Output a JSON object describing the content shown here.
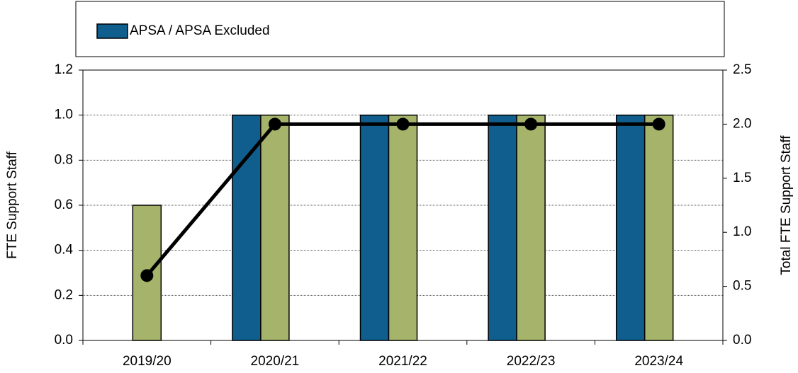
{
  "chart_data": {
    "type": "bar",
    "categories": [
      "2019/20",
      "2020/21",
      "2021/22",
      "2022/23",
      "2023/24"
    ],
    "series": [
      {
        "name": "APSA / APSA Excluded",
        "color": "#0f5e8e",
        "values": [
          0,
          1.0,
          1.0,
          1.0,
          1.0
        ]
      },
      {
        "color": "#a5b46a",
        "values": [
          0.6,
          1.0,
          1.0,
          1.0,
          1.0
        ]
      },
      {
        "type": "line",
        "axis": "y2",
        "color": "#000000",
        "values": [
          0.6,
          2.0,
          2.0,
          2.0,
          2.0
        ]
      }
    ],
    "ylabel": "FTE Support Staff",
    "y2label": "Total FTE Support Staff",
    "ylim": [
      0,
      1.2
    ],
    "yticks": [
      {
        "value": 0,
        "label": "0.0"
      },
      0.2,
      0.4,
      0.6,
      0.8,
      {
        "value": 1,
        "label": "1.0"
      },
      1.2
    ],
    "y2lim": [
      0,
      2.5
    ],
    "y2ticks": [
      {
        "value": 0,
        "label": "0.0"
      },
      0.5,
      {
        "value": 1,
        "label": "1.0"
      },
      1.5,
      {
        "value": 2,
        "label": "2.0"
      },
      2.5
    ],
    "grid": true,
    "legend": "top"
  }
}
